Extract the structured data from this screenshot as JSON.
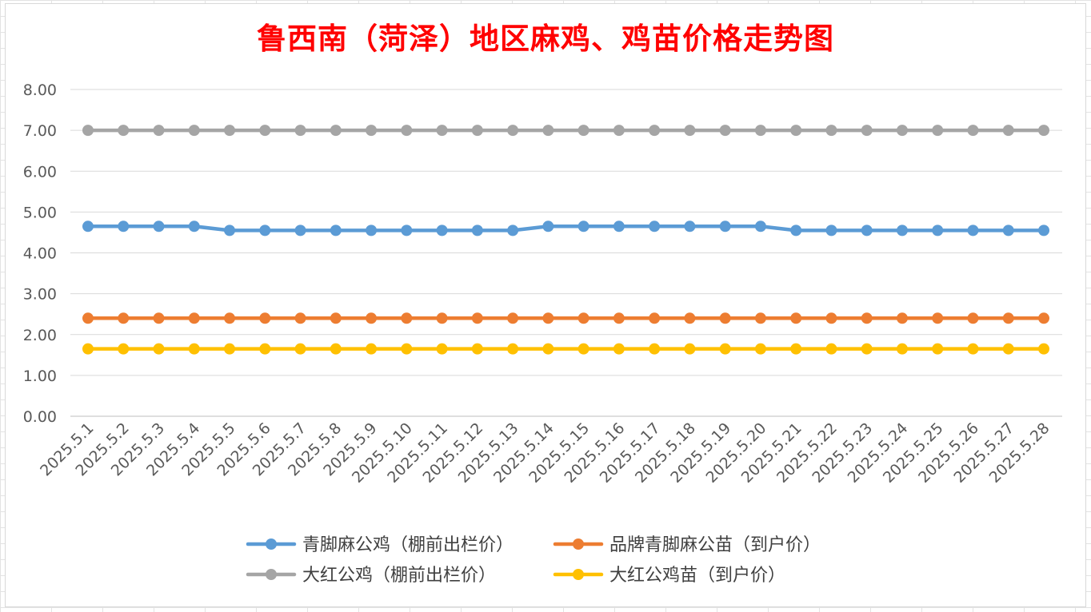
{
  "chart_data": {
    "type": "line",
    "title": "鲁西南（菏泽）地区麻鸡、鸡苗价格走势图",
    "xlabel": "",
    "ylabel": "",
    "ylim": [
      0,
      8
    ],
    "y_ticks": [
      "0.00",
      "1.00",
      "2.00",
      "3.00",
      "4.00",
      "5.00",
      "6.00",
      "7.00",
      "8.00"
    ],
    "grid": true,
    "legend_position": "bottom",
    "categories": [
      "2025.5.1",
      "2025.5.2",
      "2025.5.3",
      "2025.5.4",
      "2025.5.5",
      "2025.5.6",
      "2025.5.7",
      "2025.5.8",
      "2025.5.9",
      "2025.5.10",
      "2025.5.11",
      "2025.5.12",
      "2025.5.13",
      "2025.5.14",
      "2025.5.15",
      "2025.5.16",
      "2025.5.17",
      "2025.5.18",
      "2025.5.19",
      "2025.5.20",
      "2025.5.21",
      "2025.5.22",
      "2025.5.23",
      "2025.5.24",
      "2025.5.25",
      "2025.5.26",
      "2025.5.27",
      "2025.5.28"
    ],
    "series": [
      {
        "name": "青脚麻公鸡（棚前出栏价）",
        "color": "#5b9bd5",
        "values": [
          4.65,
          4.65,
          4.65,
          4.65,
          4.55,
          4.55,
          4.55,
          4.55,
          4.55,
          4.55,
          4.55,
          4.55,
          4.55,
          4.65,
          4.65,
          4.65,
          4.65,
          4.65,
          4.65,
          4.65,
          4.55,
          4.55,
          4.55,
          4.55,
          4.55,
          4.55,
          4.55,
          4.55
        ]
      },
      {
        "name": "品牌青脚麻公苗（到户价）",
        "color": "#ed7d31",
        "values": [
          2.4,
          2.4,
          2.4,
          2.4,
          2.4,
          2.4,
          2.4,
          2.4,
          2.4,
          2.4,
          2.4,
          2.4,
          2.4,
          2.4,
          2.4,
          2.4,
          2.4,
          2.4,
          2.4,
          2.4,
          2.4,
          2.4,
          2.4,
          2.4,
          2.4,
          2.4,
          2.4,
          2.4
        ]
      },
      {
        "name": "大红公鸡（棚前出栏价）",
        "color": "#a5a5a5",
        "values": [
          7.0,
          7.0,
          7.0,
          7.0,
          7.0,
          7.0,
          7.0,
          7.0,
          7.0,
          7.0,
          7.0,
          7.0,
          7.0,
          7.0,
          7.0,
          7.0,
          7.0,
          7.0,
          7.0,
          7.0,
          7.0,
          7.0,
          7.0,
          7.0,
          7.0,
          7.0,
          7.0,
          7.0
        ]
      },
      {
        "name": "大红公鸡苗（到户价）",
        "color": "#ffc000",
        "values": [
          1.65,
          1.65,
          1.65,
          1.65,
          1.65,
          1.65,
          1.65,
          1.65,
          1.65,
          1.65,
          1.65,
          1.65,
          1.65,
          1.65,
          1.65,
          1.65,
          1.65,
          1.65,
          1.65,
          1.65,
          1.65,
          1.65,
          1.65,
          1.65,
          1.65,
          1.65,
          1.65,
          1.65
        ]
      }
    ]
  }
}
